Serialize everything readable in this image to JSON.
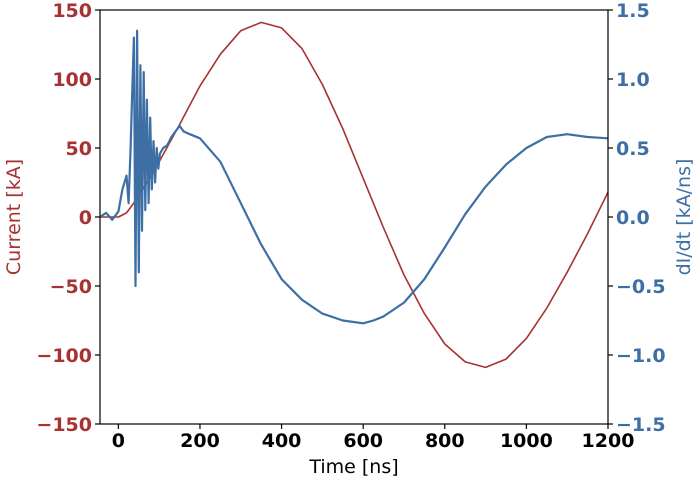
{
  "chart_data": {
    "type": "line",
    "xlabel": "Time [ns]",
    "ylabel_left": "Current [kA]",
    "ylabel_right": "dI/dt [kA/ns]",
    "xlim": [
      -45,
      1200
    ],
    "ylim_left": [
      -150,
      150
    ],
    "ylim_right": [
      -1.5,
      1.5
    ],
    "x_ticks": [
      "0",
      "200",
      "400",
      "600",
      "800",
      "1000",
      "1200"
    ],
    "y_left_ticks": [
      "150",
      "100",
      "50",
      "0",
      "−50",
      "−100",
      "−150"
    ],
    "y_right_ticks": [
      "1.5",
      "1.0",
      "0.5",
      "0.0",
      "−0.5",
      "−1.0",
      "−1.5"
    ],
    "grid": false,
    "colors": {
      "current": "#a83232",
      "didt": "#3d6fa5",
      "axes": "#000000"
    },
    "series": [
      {
        "axis": "left",
        "x": [
          -45,
          0,
          20,
          50,
          100,
          150,
          200,
          250,
          300,
          350,
          400,
          450,
          500,
          550,
          600,
          650,
          700,
          750,
          800,
          850,
          900,
          950,
          1000,
          1050,
          1100,
          1150,
          1200
        ],
        "y": [
          0,
          0,
          3,
          15,
          40,
          67,
          95,
          118,
          135,
          141,
          137,
          122,
          96,
          64,
          28,
          -8,
          -42,
          -70,
          -92,
          -105,
          -109,
          -103,
          -88,
          -66,
          -40,
          -12,
          18
        ]
      },
      {
        "axis": "right",
        "x": [
          -45,
          -30,
          -15,
          0,
          10,
          20,
          25,
          30,
          34,
          38,
          42,
          46,
          50,
          54,
          58,
          62,
          66,
          70,
          74,
          78,
          82,
          86,
          90,
          94,
          98,
          102,
          110,
          120,
          130,
          140,
          150,
          160,
          175,
          200,
          250,
          300,
          350,
          400,
          450,
          500,
          550,
          600,
          625,
          650,
          700,
          750,
          800,
          850,
          900,
          950,
          1000,
          1050,
          1100,
          1150,
          1200
        ],
        "y": [
          0.0,
          0.03,
          -0.02,
          0.04,
          0.2,
          0.3,
          0.1,
          0.5,
          0.9,
          1.3,
          -0.5,
          1.35,
          -0.4,
          1.1,
          -0.1,
          1.05,
          0.05,
          0.85,
          0.1,
          0.72,
          0.2,
          0.55,
          0.25,
          0.5,
          0.35,
          0.46,
          0.5,
          0.52,
          0.58,
          0.62,
          0.66,
          0.62,
          0.6,
          0.57,
          0.4,
          0.1,
          -0.2,
          -0.45,
          -0.6,
          -0.7,
          -0.75,
          -0.77,
          -0.75,
          -0.72,
          -0.62,
          -0.45,
          -0.22,
          0.02,
          0.22,
          0.38,
          0.5,
          0.58,
          0.6,
          0.58,
          0.57
        ]
      }
    ]
  }
}
